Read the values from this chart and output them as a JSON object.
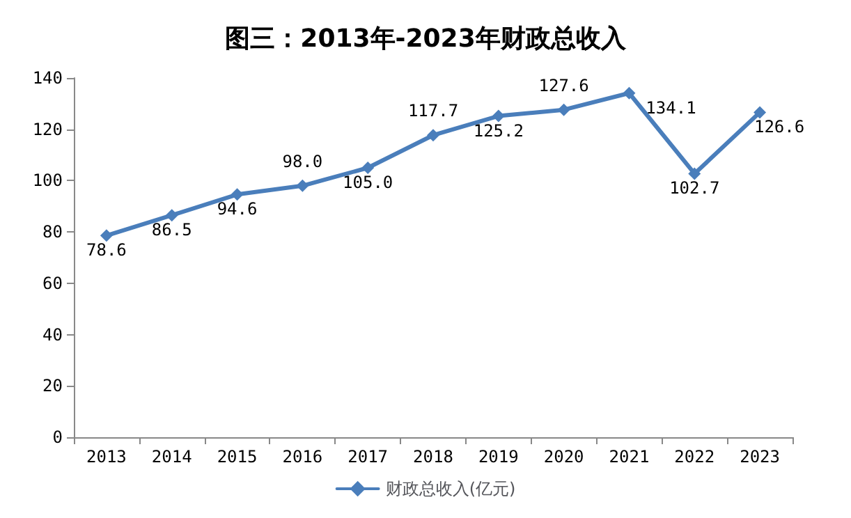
{
  "chart_data": {
    "type": "line",
    "title": "图三：2013年-2023年财政总收入",
    "categories": [
      "2013",
      "2014",
      "2015",
      "2016",
      "2017",
      "2018",
      "2019",
      "2020",
      "2021",
      "2022",
      "2023"
    ],
    "series": [
      {
        "name": "财政总收入(亿元)",
        "color": "#4a7ebb",
        "values": [
          78.6,
          86.5,
          94.6,
          98.0,
          105.0,
          117.7,
          125.2,
          127.6,
          134.1,
          102.7,
          126.6
        ],
        "value_labels": [
          "78.6",
          "86.5",
          "94.6",
          "98.0",
          "105.0",
          "117.7",
          "125.2",
          "127.6",
          "134.1",
          "102.7",
          "126.6"
        ]
      }
    ],
    "ylim": [
      0,
      140
    ],
    "yticks": [
      0,
      20,
      40,
      60,
      80,
      100,
      120,
      140
    ],
    "grid": false,
    "legend": "bottom",
    "marker": "diamond",
    "line_style": "solid"
  }
}
